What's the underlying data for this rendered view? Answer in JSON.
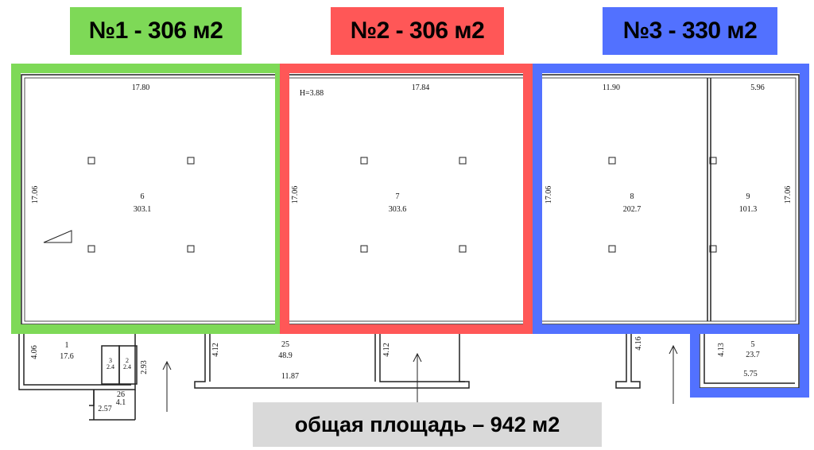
{
  "units": [
    {
      "label": "№1 - 306 м2",
      "color": "#7ed957"
    },
    {
      "label": "№2 - 306 м2",
      "color": "#ff5757"
    },
    {
      "label": "№3 - 330 м2",
      "color": "#5271ff"
    }
  ],
  "total_area_label": "общая площадь – 942 м2",
  "plan": {
    "ceiling_height": "H=3.88",
    "dims": {
      "w6": "17.80",
      "h6": "17.06",
      "w7": "17.84",
      "h7": "17.06",
      "w8": "11.90",
      "h8": "17.06",
      "w9": "5.96",
      "h9": "17.06",
      "h1": "4.06",
      "h_wc": "2.93",
      "w26": "2.57",
      "h25a": "4.12",
      "h25b": "4.12",
      "w25": "11.87",
      "h_right": "4.16",
      "h5": "4.13",
      "w5": "5.75"
    },
    "rooms": [
      {
        "no": "6",
        "area": "303.1"
      },
      {
        "no": "7",
        "area": "303.6"
      },
      {
        "no": "8",
        "area": "202.7"
      },
      {
        "no": "9",
        "area": "101.3"
      },
      {
        "no": "1",
        "area": "17.6"
      },
      {
        "no": "3",
        "area": "2.4"
      },
      {
        "no": "2",
        "area": "2.4"
      },
      {
        "no": "26",
        "area": "4.1"
      },
      {
        "no": "25",
        "area": "48.9"
      },
      {
        "no": "5",
        "area": "23.7"
      }
    ]
  }
}
